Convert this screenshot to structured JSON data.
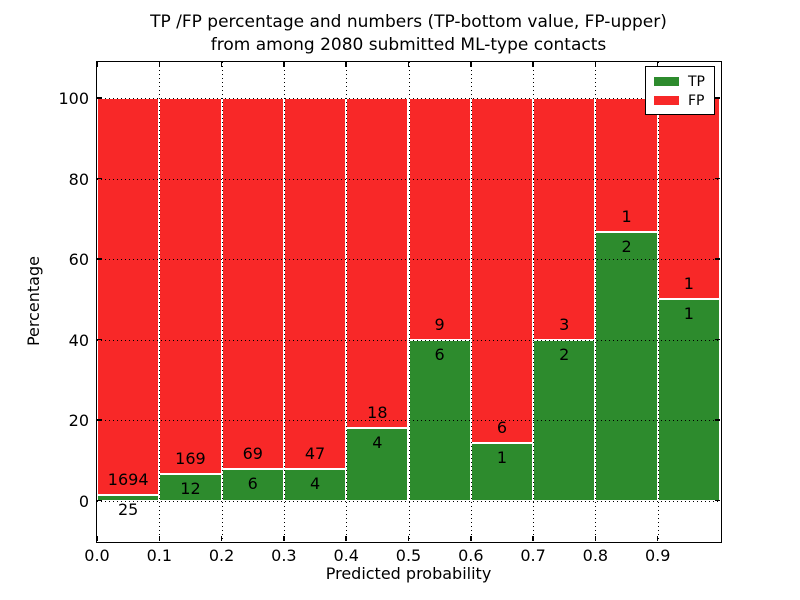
{
  "figure": {
    "background": "#ffffff"
  },
  "chart_data": {
    "type": "bar",
    "stacked": true,
    "normalized": "percent",
    "title": "TP /FP percentage and numbers (TP-bottom value, FP-upper)\nfrom among 2080 submitted ML-type contacts",
    "title_lines": [
      "TP /FP percentage and numbers (TP-bottom value, FP-upper)",
      "from among 2080 submitted ML-type contacts"
    ],
    "xlabel": "Predicted probability",
    "ylabel": "Percentage",
    "xlim": [
      0.0,
      1.0
    ],
    "ylim": [
      -10,
      109
    ],
    "grid": "dotted black, drawn above bars",
    "total_contacts": 2080,
    "colors": {
      "tp": "#2d8b2d",
      "fp": "#f82828",
      "bar_edge": "#ffffff"
    },
    "legend": {
      "position": "upper right",
      "entries": [
        {
          "label": "TP",
          "color": "#2d8b2d"
        },
        {
          "label": "FP",
          "color": "#f82828"
        }
      ]
    },
    "bins": [
      {
        "x0": 0.0,
        "x1": 0.1,
        "tp": 25,
        "fp": 1694,
        "tp_percent": 1.45
      },
      {
        "x0": 0.1,
        "x1": 0.2,
        "tp": 12,
        "fp": 169,
        "tp_percent": 6.63
      },
      {
        "x0": 0.2,
        "x1": 0.3,
        "tp": 6,
        "fp": 69,
        "tp_percent": 8.0
      },
      {
        "x0": 0.3,
        "x1": 0.4,
        "tp": 4,
        "fp": 47,
        "tp_percent": 7.84
      },
      {
        "x0": 0.4,
        "x1": 0.5,
        "tp": 4,
        "fp": 18,
        "tp_percent": 18.18
      },
      {
        "x0": 0.5,
        "x1": 0.6,
        "tp": 6,
        "fp": 9,
        "tp_percent": 40.0
      },
      {
        "x0": 0.6,
        "x1": 0.7,
        "tp": 1,
        "fp": 6,
        "tp_percent": 14.29
      },
      {
        "x0": 0.7,
        "x1": 0.8,
        "tp": 2,
        "fp": 3,
        "tp_percent": 40.0
      },
      {
        "x0": 0.8,
        "x1": 0.9,
        "tp": 2,
        "fp": 1,
        "tp_percent": 66.67
      },
      {
        "x0": 0.9,
        "x1": 1.0,
        "tp": 1,
        "fp": 1,
        "tp_percent": 50.0
      }
    ],
    "bar_label_rule": "FP count printed above the TP/FP boundary, TP count printed below it",
    "xticks": {
      "values": [
        0.0,
        0.1,
        0.2,
        0.3,
        0.4,
        0.5,
        0.6,
        0.7,
        0.8,
        0.9
      ],
      "labels": [
        "0.0",
        "0.1",
        "0.2",
        "0.3",
        "0.4",
        "0.5",
        "0.6",
        "0.7",
        "0.8",
        "0.9"
      ]
    },
    "yticks": {
      "values": [
        0,
        20,
        40,
        60,
        80,
        100
      ],
      "labels": [
        "0",
        "20",
        "40",
        "60",
        "80",
        "100"
      ]
    }
  }
}
